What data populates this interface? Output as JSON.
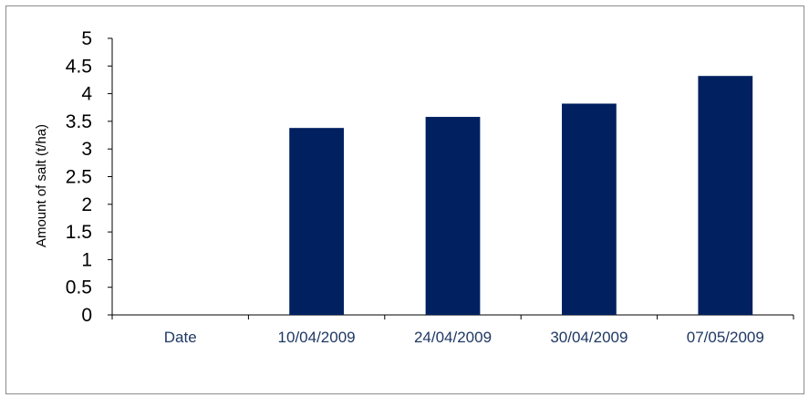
{
  "chart_data": {
    "type": "bar",
    "categories": [
      "Date",
      "10/04/2009",
      "24/04/2009",
      "30/04/2009",
      "07/05/2009"
    ],
    "values": [
      null,
      3.38,
      3.58,
      3.82,
      4.32
    ],
    "ylabel": "Amount of salt (t/ha)",
    "ylim": [
      0,
      5
    ],
    "yticks": [
      "0",
      "0.5",
      "1",
      "1.5",
      "2",
      "2.5",
      "3",
      "3.5",
      "4",
      "4.5",
      "5"
    ],
    "grid": false,
    "legend": "none",
    "bar_color": "#002060",
    "category_label_color": "#1f3864"
  }
}
